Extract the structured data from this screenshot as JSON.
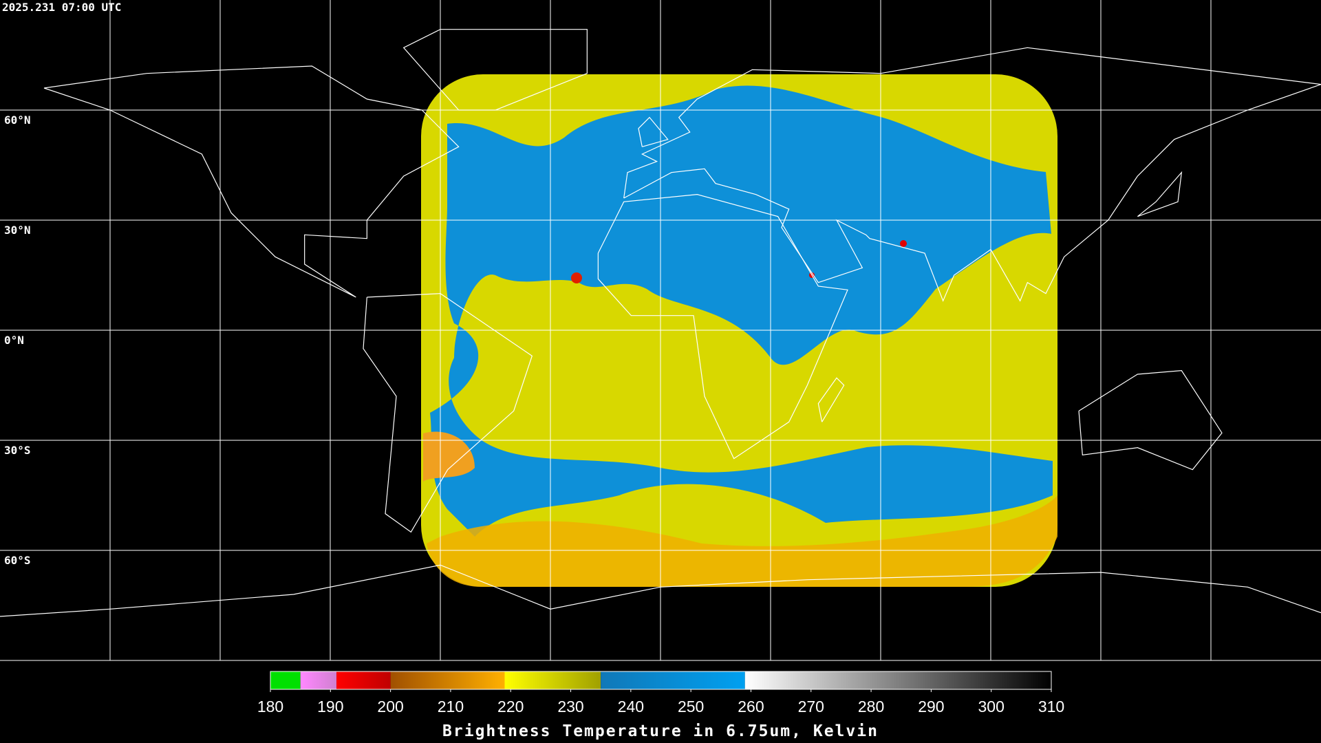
{
  "timestamp": "2025.231 07:00 UTC",
  "map": {
    "lat_labels": [
      {
        "value": 60,
        "label": "60°N"
      },
      {
        "value": 30,
        "label": "30°N"
      },
      {
        "value": 0,
        "label": "0°N"
      },
      {
        "value": -30,
        "label": "30°S"
      },
      {
        "value": -60,
        "label": "60°S"
      }
    ]
  },
  "colorbar": {
    "title": "Brightness Temperature in 6.75um, Kelvin",
    "range": [
      180,
      310
    ],
    "ticks": [
      180,
      190,
      200,
      210,
      220,
      230,
      240,
      250,
      260,
      270,
      280,
      290,
      300,
      310
    ],
    "segments": [
      {
        "from": 180,
        "to": 185,
        "colors": [
          "#00e000",
          "#00e000"
        ]
      },
      {
        "from": 185,
        "to": 191,
        "colors": [
          "#ff88ff",
          "#d080d0"
        ]
      },
      {
        "from": 191,
        "to": 200,
        "colors": [
          "#ff0000",
          "#c00000"
        ]
      },
      {
        "from": 200,
        "to": 219,
        "colors": [
          "#a05000",
          "#ffb000"
        ]
      },
      {
        "from": 219,
        "to": 235,
        "colors": [
          "#ffff00",
          "#a0a000"
        ]
      },
      {
        "from": 235,
        "to": 259,
        "colors": [
          "#1078b8",
          "#00a0f0"
        ]
      },
      {
        "from": 259,
        "to": 310,
        "colors": [
          "#ffffff",
          "#000000"
        ]
      }
    ]
  }
}
